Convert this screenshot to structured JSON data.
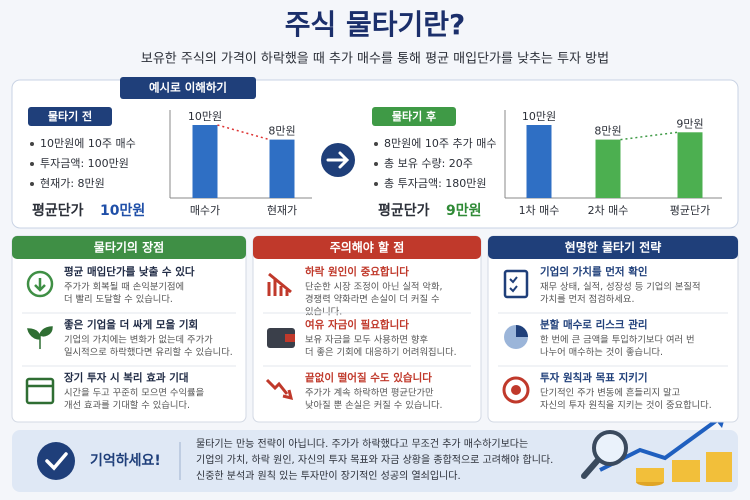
{
  "header": {
    "title": "주식 물타기란?",
    "subtitle": "보유한 주식의 가격이 하락했을 때 추가 매수를 통해 평균 매입단가를 낮추는 투자 방법"
  },
  "example": {
    "tab": "예시로 이해하기",
    "before": {
      "badge": "물타기 전",
      "items": [
        "10만원에 10주 매수",
        "투자금액: 100만원",
        "현재가: 8만원"
      ],
      "avg_label": "평균단가",
      "avg_value": "10만원",
      "chart": {
        "type": "bar",
        "categories": [
          "매수가",
          "현재가"
        ],
        "values": [
          10,
          8
        ],
        "value_labels": [
          "10만원",
          "8만원"
        ]
      }
    },
    "after": {
      "badge": "물타기 후",
      "items": [
        "8만원에 10주 추가 매수",
        "총 보유 수량: 20주",
        "총 투자금액: 180만원"
      ],
      "avg_label": "평균단가",
      "avg_value": "9만원",
      "chart": {
        "type": "bar",
        "categories": [
          "1차 매수",
          "2차 매수",
          "평균단가"
        ],
        "values": [
          10,
          8,
          9
        ],
        "value_labels": [
          "10만원",
          "8만원",
          "9만원"
        ]
      }
    }
  },
  "panels": [
    {
      "title": "물타기의 장점",
      "items": [
        {
          "heading": "평균 매입단가를 낮출 수 있다",
          "text": [
            "주가가 회복될 때 손익분기점에",
            "더 빨리 도달할 수 있습니다."
          ]
        },
        {
          "heading": "좋은 기업을 더 싸게 모을 기회",
          "text": [
            "기업의 가치에는 변화가 없는데 주가가",
            "일시적으로 하락했다면 유리할 수 있습니다."
          ]
        },
        {
          "heading": "장기 투자 시 복리 효과 기대",
          "text": [
            "시간을 두고 꾸준히 모으면 수익률을",
            "개선 효과를 기대할 수 있습니다."
          ]
        }
      ]
    },
    {
      "title": "주의해야 할 점",
      "items": [
        {
          "heading": "하락 원인이 중요합니다",
          "text": [
            "단순한 시장 조정이 아닌 실적 악화,",
            "경쟁력 약화라면 손실이 더 커질 수",
            "있습니다."
          ]
        },
        {
          "heading": "여유 자금이 필요합니다",
          "text": [
            "보유 자금을 모두 사용하면 향후",
            "더 좋은 기회에 대응하기 어려워집니다."
          ]
        },
        {
          "heading": "끝없이 떨어질 수도 있습니다",
          "text": [
            "주가가 계속 하락하면 평균단가만",
            "낮아질 뿐 손실은 커질 수 있습니다."
          ]
        }
      ]
    },
    {
      "title": "현명한 물타기 전략",
      "items": [
        {
          "heading": "기업의 가치를 먼저 확인",
          "text": [
            "재무 상태, 실적, 성장성 등 기업의 본질적",
            "가치를 먼저 점검하세요."
          ]
        },
        {
          "heading": "분할 매수로 리스크 관리",
          "text": [
            "한 번에 큰 금액을 투입하기보다 여러 번",
            "나누어 매수하는 것이 좋습니다."
          ]
        },
        {
          "heading": "투자 원칙과 목표 지키기",
          "text": [
            "단기적인 주가 변동에 흔들리지 말고",
            "자신의 투자 원칙을 지키는 것이 중요합니다."
          ]
        }
      ]
    }
  ],
  "reminder": {
    "title": "기억하세요!",
    "lines": [
      "물타기는 만능 전략이 아닙니다. 주가가 하락했다고 무조건 추가 매수하기보다는",
      "기업의 가치, 하락 원인, 자신의 투자 목표와 자금 상황을 종합적으로 고려해야 합니다.",
      "신중한 분석과 원칙 있는 투자만이 장기적인 성공의 열쇠입니다."
    ]
  }
}
